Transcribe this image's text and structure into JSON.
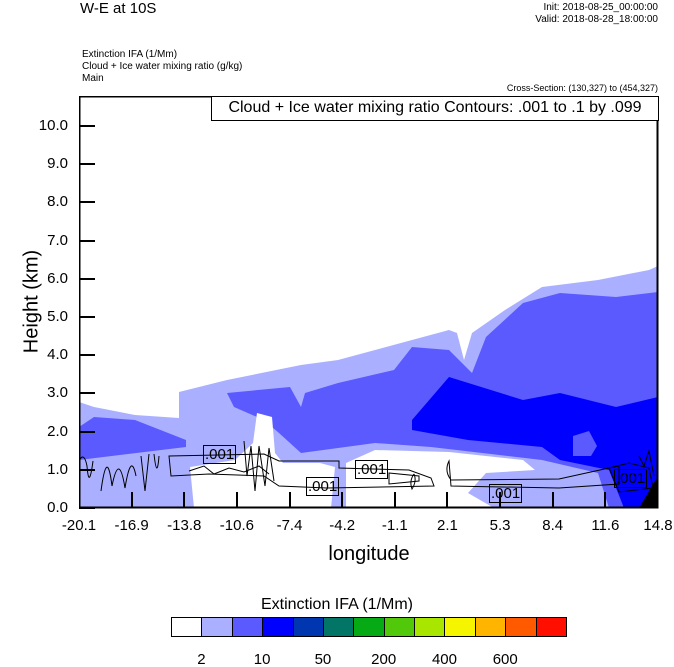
{
  "header": {
    "title": "W-E at 10S",
    "init": "Init: 2018-08-25_00:00:00",
    "valid": "Valid: 2018-08-28_18:00:00",
    "fields": [
      "Extinction IFA   (1/Mm)",
      "Cloud + Ice water mixing ratio   (g/kg)",
      "Main"
    ],
    "cross_section": "Cross-Section: (130,327) to (454,327)"
  },
  "chart_data": {
    "type": "heatmap",
    "title": "Cloud + Ice water mixing ratio Contours: .001 to .1 by .099",
    "xlabel": "longitude",
    "ylabel": "Height (km)",
    "xlim": [
      -20.1,
      14.8
    ],
    "ylim": [
      0,
      10.8
    ],
    "x_ticks": [
      "-20.1",
      "-16.9",
      "-13.8",
      "-10.6",
      "-7.4",
      "-4.2",
      "-1.1",
      "2.1",
      "5.3",
      "8.4",
      "11.6",
      "14.8"
    ],
    "y_ticks": [
      "0.0",
      "1.0",
      "2.0",
      "3.0",
      "4.0",
      "5.0",
      "6.0",
      "7.0",
      "8.0",
      "9.0",
      "10.0"
    ],
    "contour_labels": [
      ".001",
      ".001",
      ".001",
      ".001",
      ".001"
    ],
    "colorbar": {
      "title": "Extinction IFA  (1/Mm)",
      "colors": [
        "#ffffff",
        "#aab0ff",
        "#5a5aff",
        "#0000ff",
        "#0036b0",
        "#037566",
        "#05aa14",
        "#52c80a",
        "#a8e600",
        "#f5f500",
        "#ffb400",
        "#ff5a00",
        "#ff0f00"
      ],
      "labels": [
        "2",
        "10",
        "50",
        "200",
        "400",
        "600"
      ]
    }
  }
}
